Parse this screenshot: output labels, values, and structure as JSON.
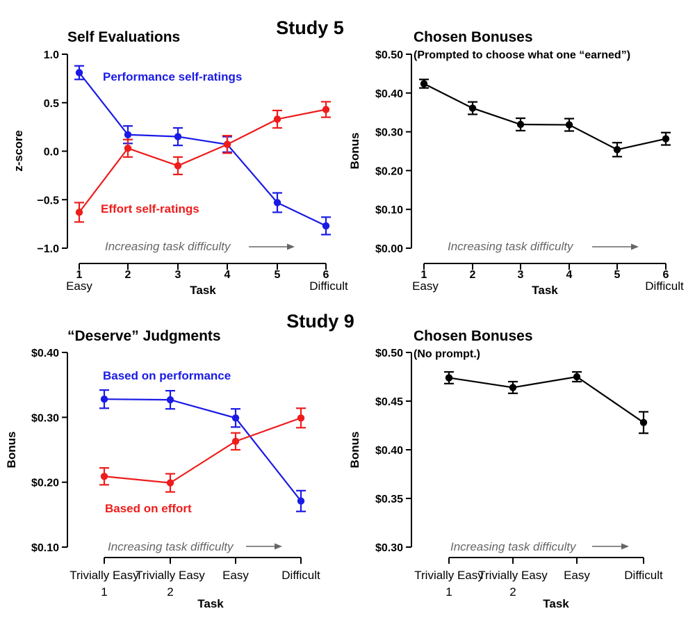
{
  "colors": {
    "blue": "#1a1ae6",
    "red": "#ee1c1c",
    "black": "#000000",
    "grey": "#666666"
  },
  "study_labels": [
    "Study 5",
    "Study 9"
  ],
  "difficulty_arrow_text": "Increasing task difficulty",
  "chart_data": [
    {
      "type": "line",
      "title": "Self Evaluations",
      "subtitle": "",
      "xlabel": "Task",
      "ylabel": "z-score",
      "categories": [
        "1",
        "2",
        "3",
        "4",
        "5",
        "6"
      ],
      "x_endpoint_labels": [
        "Easy",
        "Difficult"
      ],
      "ylim": [
        -1.0,
        1.0
      ],
      "yticks": [
        -1.0,
        -0.5,
        0.0,
        0.5,
        1.0
      ],
      "ytick_labels": [
        "−1.0",
        "−0.5",
        "0.0",
        "0.5",
        "1.0"
      ],
      "series": [
        {
          "name": "Performance self-ratings",
          "color_key": "blue",
          "values": [
            0.81,
            0.17,
            0.15,
            0.07,
            -0.53,
            -0.77
          ],
          "errors": [
            0.07,
            0.09,
            0.09,
            0.08,
            0.1,
            0.09
          ]
        },
        {
          "name": "Effort self-ratings",
          "color_key": "red",
          "values": [
            -0.63,
            0.03,
            -0.15,
            0.07,
            0.33,
            0.43
          ],
          "errors": [
            0.1,
            0.09,
            0.09,
            0.09,
            0.09,
            0.08
          ]
        }
      ]
    },
    {
      "type": "line",
      "title": "Chosen Bonuses",
      "subtitle": "(Prompted to choose what one “earned”)",
      "xlabel": "Task",
      "ylabel": "Bonus",
      "categories": [
        "1",
        "2",
        "3",
        "4",
        "5",
        "6"
      ],
      "x_endpoint_labels": [
        "Easy",
        "Difficult"
      ],
      "ylim": [
        0.0,
        0.5
      ],
      "yticks": [
        0.0,
        0.1,
        0.2,
        0.3,
        0.4,
        0.5
      ],
      "ytick_labels": [
        "$0.00",
        "$0.10",
        "$0.20",
        "$0.30",
        "$0.40",
        "$0.50"
      ],
      "series": [
        {
          "name": "Chosen bonus",
          "color_key": "black",
          "values": [
            0.424,
            0.361,
            0.319,
            0.318,
            0.254,
            0.282
          ],
          "errors": [
            0.011,
            0.016,
            0.016,
            0.016,
            0.018,
            0.016
          ]
        }
      ]
    },
    {
      "type": "line",
      "title": "“Deserve” Judgments",
      "subtitle": "",
      "xlabel": "Task",
      "ylabel": "Bonus",
      "categories": [
        "Trivially Easy 1",
        "Trivially Easy 2",
        "Easy",
        "Difficult"
      ],
      "ylim": [
        0.1,
        0.4
      ],
      "yticks": [
        0.1,
        0.2,
        0.3,
        0.4
      ],
      "ytick_labels": [
        "$0.10",
        "$0.20",
        "$0.30",
        "$0.40"
      ],
      "series": [
        {
          "name": "Based on performance",
          "color_key": "blue",
          "values": [
            0.328,
            0.327,
            0.299,
            0.171
          ],
          "errors": [
            0.014,
            0.014,
            0.014,
            0.016
          ]
        },
        {
          "name": "Based on effort",
          "color_key": "red",
          "values": [
            0.209,
            0.199,
            0.263,
            0.299
          ],
          "errors": [
            0.013,
            0.014,
            0.013,
            0.015
          ]
        }
      ]
    },
    {
      "type": "line",
      "title": "Chosen Bonuses",
      "subtitle": "(No prompt.)",
      "xlabel": "Task",
      "ylabel": "Bonus",
      "categories": [
        "Trivially Easy 1",
        "Trivially Easy 2",
        "Easy",
        "Difficult"
      ],
      "ylim": [
        0.3,
        0.5
      ],
      "yticks": [
        0.3,
        0.35,
        0.4,
        0.45,
        0.5
      ],
      "ytick_labels": [
        "$0.30",
        "$0.35",
        "$0.40",
        "$0.45",
        "$0.50"
      ],
      "series": [
        {
          "name": "Chosen bonus",
          "color_key": "black",
          "values": [
            0.474,
            0.464,
            0.475,
            0.428
          ],
          "errors": [
            0.006,
            0.006,
            0.005,
            0.011
          ]
        }
      ]
    }
  ]
}
